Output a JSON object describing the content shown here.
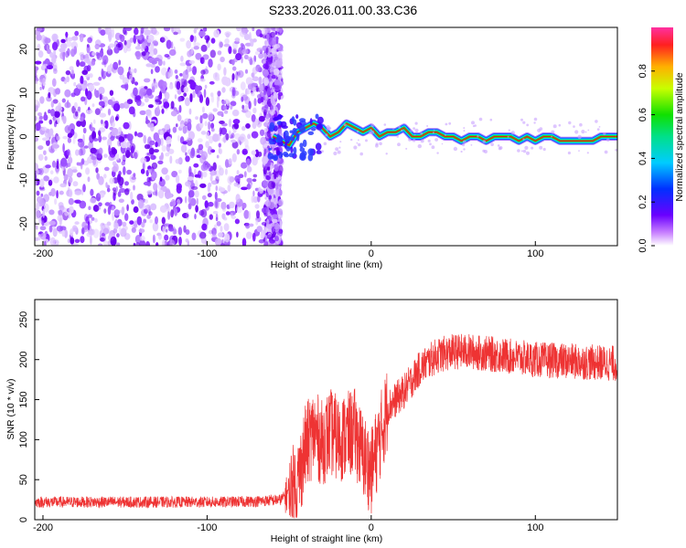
{
  "title": "S233.2026.011.00.33.C36",
  "chart_data": [
    {
      "type": "heatmap",
      "xlabel": "Height of straight line (km)",
      "ylabel": "Frequency (Hz)",
      "xlim": [
        -205,
        150
      ],
      "ylim": [
        -25,
        25
      ],
      "xticks": [
        -200,
        -100,
        0,
        100
      ],
      "yticks": [
        -20,
        -10,
        0,
        10,
        20
      ],
      "noise_region_x": [
        -205,
        -55
      ],
      "signal_track": {
        "x": [
          -60,
          -55,
          -50,
          -45,
          -40,
          -35,
          -30,
          -25,
          -20,
          -15,
          -10,
          -5,
          0,
          5,
          10,
          15,
          20,
          25,
          30,
          35,
          40,
          45,
          50,
          55,
          60,
          65,
          70,
          75,
          80,
          85,
          90,
          95,
          100,
          105,
          110,
          115,
          120,
          125,
          130,
          135,
          140,
          145,
          150
        ],
        "y": [
          0,
          -1,
          -2,
          1,
          2,
          3,
          2,
          0,
          1,
          3,
          2,
          1,
          2,
          0,
          1,
          1,
          2,
          0,
          0,
          1,
          1,
          0,
          0,
          -1,
          0,
          0,
          -1,
          0,
          0,
          0,
          -1,
          0,
          -1,
          0,
          0,
          -1,
          -1,
          -1,
          -1,
          -1,
          0,
          0,
          0
        ]
      },
      "colorbar": {
        "label": "Normalized spectral amplitude",
        "range": [
          0.0,
          1.0
        ],
        "ticks": [
          "0.0",
          "0.2",
          "0.4",
          "0.6",
          "0.8"
        ],
        "tick_values": [
          0.0,
          0.2,
          0.4,
          0.6,
          0.8
        ]
      }
    },
    {
      "type": "line",
      "xlabel": "Height of straight line (km)",
      "ylabel": "SNR (10 * v/v)",
      "xlim": [
        -205,
        150
      ],
      "ylim": [
        0,
        275
      ],
      "xticks": [
        -200,
        -100,
        0,
        100
      ],
      "yticks": [
        0,
        50,
        100,
        150,
        200,
        250
      ],
      "color": "#ee3333",
      "series": [
        {
          "name": "SNR",
          "x": [
            -205,
            -180,
            -150,
            -120,
            -90,
            -70,
            -55,
            -45,
            -40,
            -35,
            -30,
            -25,
            -20,
            -15,
            -10,
            -5,
            0,
            5,
            10,
            15,
            20,
            25,
            30,
            40,
            50,
            60,
            80,
            100,
            120,
            150
          ],
          "y": [
            22,
            22,
            22,
            22,
            22,
            23,
            25,
            45,
            90,
            110,
            95,
            110,
            100,
            105,
            110,
            80,
            60,
            100,
            140,
            150,
            160,
            175,
            190,
            205,
            210,
            210,
            205,
            200,
            198,
            195
          ]
        }
      ]
    }
  ]
}
